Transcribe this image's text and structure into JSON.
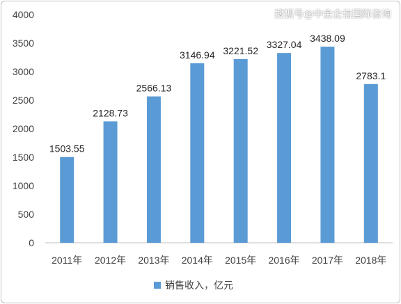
{
  "watermark": "搜狐号@中金企信国际咨询",
  "chart_data": {
    "type": "bar",
    "categories": [
      "2011年",
      "2012年",
      "2013年",
      "2014年",
      "2015年",
      "2016年",
      "2017年",
      "2018年"
    ],
    "series": [
      {
        "name": "销售收入，亿元",
        "values": [
          1503.55,
          2128.73,
          2566.13,
          3146.94,
          3221.52,
          3327.04,
          3438.09,
          2783.1
        ],
        "labels": [
          "1503.55",
          "2128.73",
          "2566.13",
          "3146.94",
          "3221.52",
          "3327.04",
          "3438.09",
          "2783.1"
        ],
        "color": "#5b9bd5"
      }
    ],
    "ylim": [
      0,
      4000
    ],
    "yticks": [
      "0",
      "500",
      "1000",
      "1500",
      "2000",
      "2500",
      "3000",
      "3500",
      "4000"
    ],
    "grid": false,
    "legend": "bottom"
  }
}
